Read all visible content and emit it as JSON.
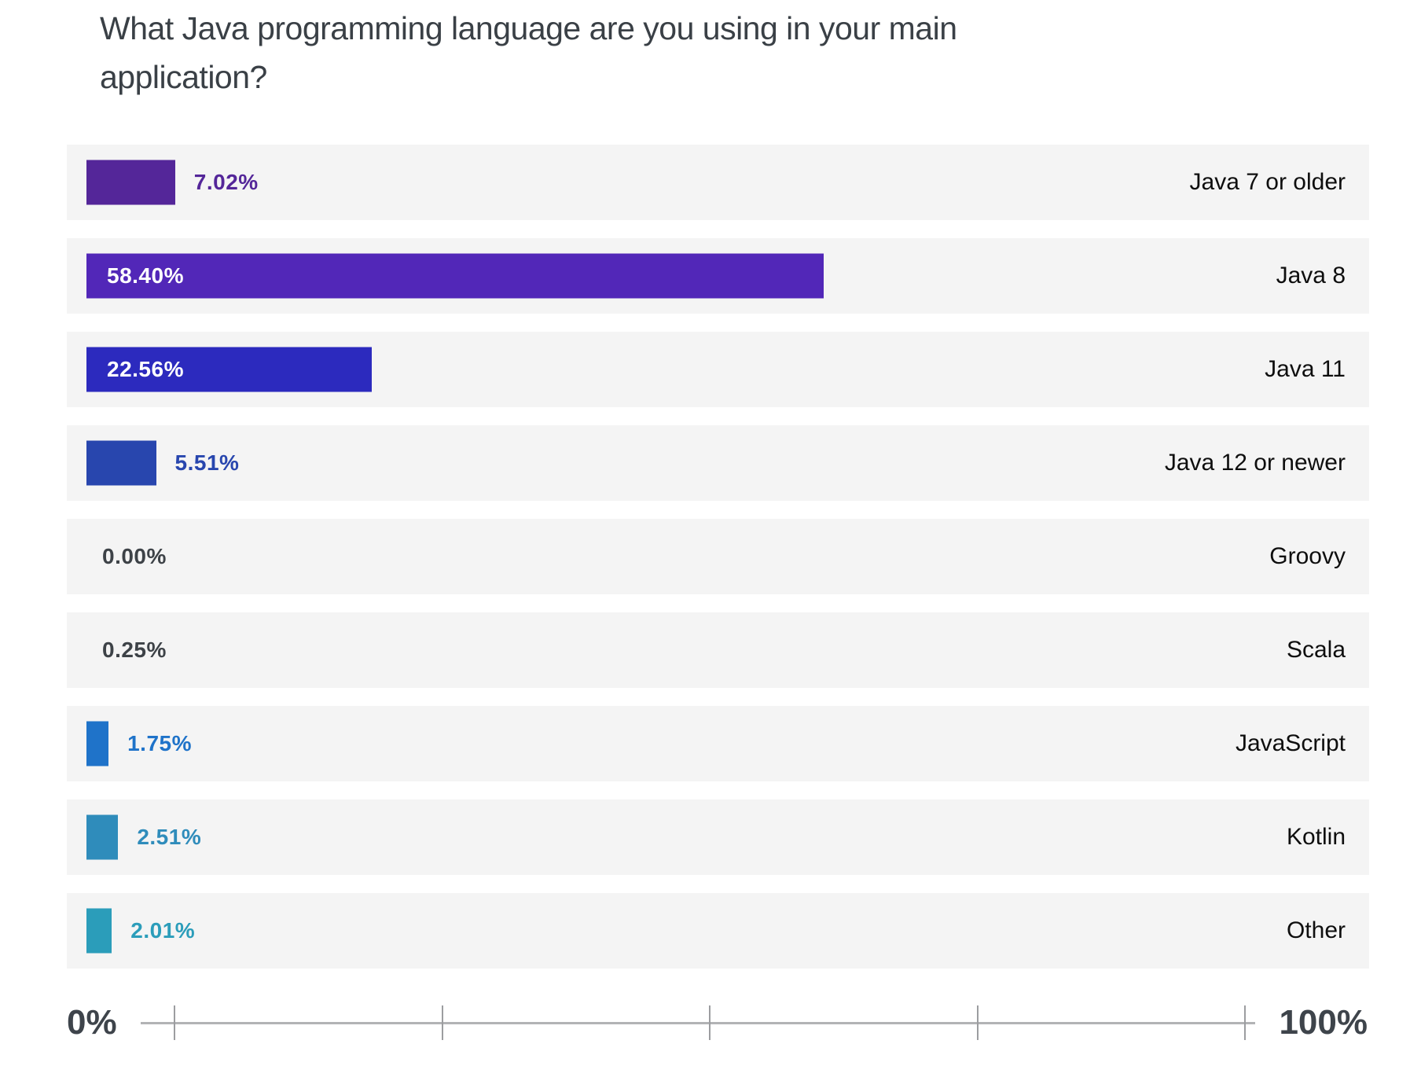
{
  "title": "What Java programming language are you using in your main application?",
  "chart_data": {
    "type": "bar",
    "orientation": "horizontal",
    "title": "What Java programming language are you using in your main application?",
    "categories": [
      "Java 7 or older",
      "Java 8",
      "Java 11",
      "Java 12 or newer",
      "Groovy",
      "Scala",
      "JavaScript",
      "Kotlin",
      "Other"
    ],
    "values": [
      7.02,
      58.4,
      22.56,
      5.51,
      0.0,
      0.25,
      1.75,
      2.51,
      2.01
    ],
    "value_labels": [
      "7.02%",
      "58.40%",
      "22.56%",
      "5.51%",
      "0.00%",
      "0.25%",
      "1.75%",
      "2.51%",
      "2.01%"
    ],
    "bar_colors": [
      "#542699",
      "#5227B8",
      "#2C2ABE",
      "#2846AE",
      null,
      null,
      "#1F73C9",
      "#2F8CBB",
      "#2B9DBA"
    ],
    "row_background": "#F4F4F4",
    "no_bar_label_color": "#3D4247",
    "inside_label_threshold": 15,
    "xlabel": "",
    "ylabel": "",
    "xlim": [
      0,
      100
    ],
    "grid": false,
    "legend": "none"
  },
  "axis": {
    "min_label": "0%",
    "max_label": "100%"
  }
}
